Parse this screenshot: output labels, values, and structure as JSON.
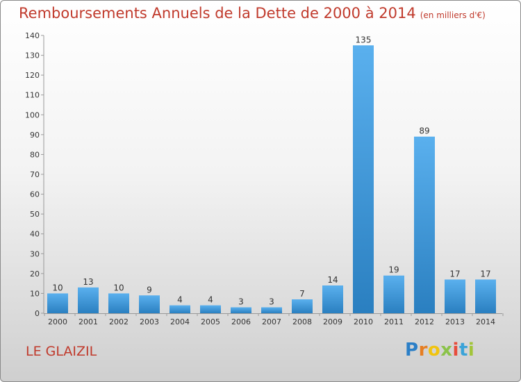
{
  "title": "Remboursements Annuels de la Dette de 2000 à 2014",
  "unit": "(en milliers d'€)",
  "commune": "LE GLAIZIL",
  "logo": {
    "letters": [
      "P",
      "r",
      "o",
      "x",
      "i",
      "t",
      "i"
    ],
    "colors": [
      "#2b7fc7",
      "#e67e22",
      "#f1c40f",
      "#8bc34a",
      "#e74c3c",
      "#3aa3d8",
      "#a2c53a"
    ]
  },
  "colors": {
    "bar": "#3b97dd",
    "bar_light": "#5ab0ee",
    "bar_dark": "#2a7fc0",
    "title": "#c0392b"
  },
  "chart_data": {
    "type": "bar",
    "title": "Remboursements Annuels de la Dette de 2000 à 2014",
    "xlabel": "",
    "ylabel": "",
    "ylim": [
      0,
      140
    ],
    "yticks": [
      0,
      10,
      20,
      30,
      40,
      50,
      60,
      70,
      80,
      90,
      100,
      110,
      120,
      130,
      140
    ],
    "grid": false,
    "categories": [
      "2000",
      "2001",
      "2002",
      "2003",
      "2004",
      "2005",
      "2006",
      "2007",
      "2008",
      "2009",
      "2010",
      "2011",
      "2012",
      "2013",
      "2014"
    ],
    "values": [
      10,
      13,
      10,
      9,
      4,
      4,
      3,
      3,
      7,
      14,
      135,
      19,
      89,
      17,
      17
    ]
  }
}
